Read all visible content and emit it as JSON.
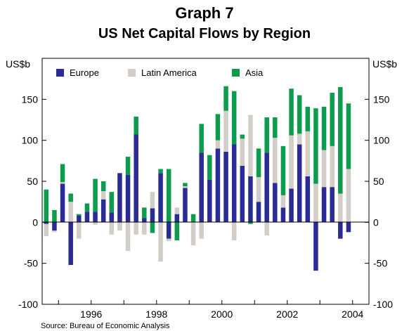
{
  "graph_label": "Graph 7",
  "source": "Source: Bureau of Economic Analysis",
  "chart_data": {
    "type": "bar",
    "stacked": true,
    "title": "US Net Capital Flows by Region",
    "ylabel_left": "US$b",
    "ylabel_right": "US$b",
    "ylim": [
      -100,
      200
    ],
    "yticks": [
      -100,
      -50,
      0,
      50,
      100,
      150
    ],
    "x_tick_labels": [
      "1996",
      "1998",
      "2000",
      "2002",
      "2004"
    ],
    "x_tick_quarter_index": [
      6,
      14,
      22,
      30,
      38
    ],
    "xlim_quarters": [
      1994.5,
      2004.75
    ],
    "legend_position": "top-left",
    "grid": false,
    "colors": {
      "Europe": "#2b2b96",
      "Latin America": "#d3cdc8",
      "Asia": "#0d9b4e"
    },
    "categories": [
      "1994Q3",
      "1994Q4",
      "1995Q1",
      "1995Q2",
      "1995Q3",
      "1995Q4",
      "1996Q1",
      "1996Q2",
      "1996Q3",
      "1996Q4",
      "1997Q1",
      "1997Q2",
      "1997Q3",
      "1997Q4",
      "1998Q1",
      "1998Q2",
      "1998Q3",
      "1998Q4",
      "1999Q1",
      "1999Q2",
      "1999Q3",
      "1999Q4",
      "2000Q1",
      "2000Q2",
      "2000Q3",
      "2000Q4",
      "2001Q1",
      "2001Q2",
      "2001Q3",
      "2001Q4",
      "2002Q1",
      "2002Q2",
      "2002Q3",
      "2002Q4",
      "2003Q1",
      "2003Q2",
      "2003Q3",
      "2003Q4",
      "2004Q1",
      "2004Q2"
    ],
    "series": [
      {
        "name": "Europe",
        "values": [
          -2,
          -10,
          47,
          -52,
          8,
          13,
          13,
          28,
          12,
          60,
          58,
          107,
          5,
          17,
          60,
          -20,
          10,
          42,
          0,
          85,
          52,
          90,
          86,
          95,
          69,
          56,
          25,
          85,
          48,
          18,
          41,
          95,
          56,
          -59,
          43,
          43,
          -20,
          -12,
          0,
          0
        ]
      },
      {
        "name": "Latin America",
        "values": [
          -15,
          -2,
          2,
          25,
          -20,
          0,
          -3,
          10,
          -15,
          -10,
          -35,
          -15,
          -15,
          20,
          -48,
          -3,
          8,
          2,
          -28,
          -20,
          0,
          10,
          50,
          -22,
          33,
          75,
          30,
          -16,
          55,
          15,
          65,
          13,
          55,
          47,
          45,
          50,
          35,
          65,
          0,
          0
        ]
      },
      {
        "name": "Asia",
        "values": [
          40,
          15,
          22,
          10,
          2,
          10,
          40,
          12,
          25,
          0,
          22,
          22,
          13,
          -13,
          5,
          65,
          -22,
          4,
          10,
          35,
          30,
          32,
          30,
          65,
          5,
          -2,
          35,
          43,
          25,
          60,
          57,
          47,
          30,
          92,
          53,
          65,
          130,
          80,
          0,
          0
        ]
      }
    ]
  }
}
